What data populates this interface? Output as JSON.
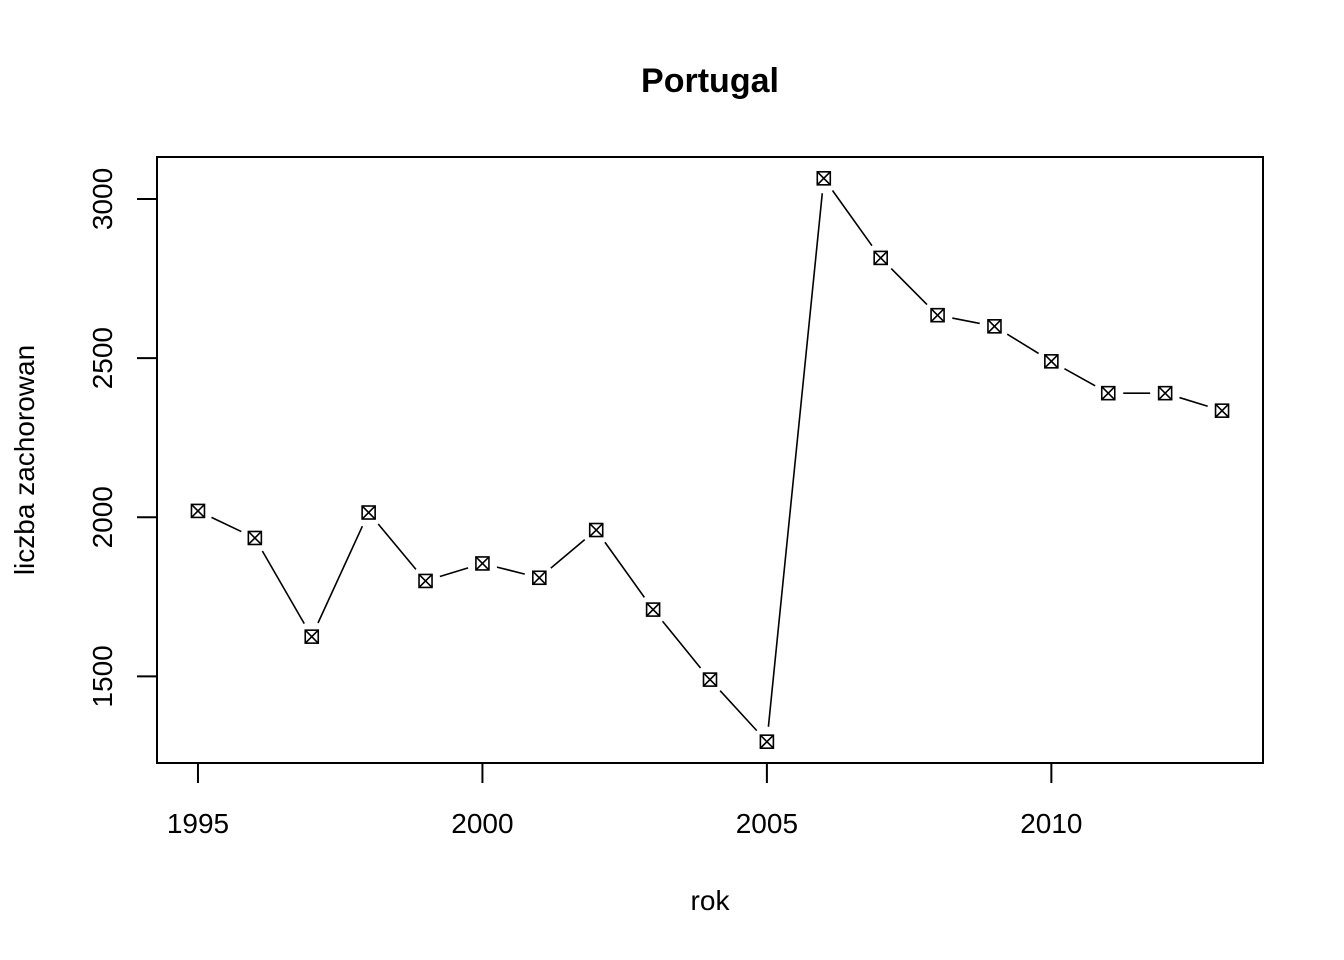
{
  "chart_data": {
    "type": "line",
    "title": "Portugal",
    "xlabel": "rok",
    "ylabel": "liczba zachorowan",
    "x": [
      1995,
      1996,
      1997,
      1998,
      1999,
      2000,
      2001,
      2002,
      2003,
      2004,
      2005,
      2006,
      2007,
      2008,
      2009,
      2010,
      2011,
      2012,
      2013
    ],
    "series": [
      {
        "values": [
          2020,
          1935,
          1625,
          2015,
          1800,
          1855,
          1810,
          1960,
          1710,
          1490,
          1295,
          3065,
          2815,
          2635,
          2600,
          2490,
          2390,
          2390,
          2335
        ]
      }
    ],
    "xlim": [
      1994.28,
      2013.72
    ],
    "ylim": [
      1228,
      3132
    ],
    "xticks": [
      1995,
      2000,
      2005,
      2010
    ],
    "yticks": [
      1500,
      2000,
      2500,
      3000
    ],
    "grid": false,
    "marker": "boxed-x",
    "line_color": "#000000"
  }
}
